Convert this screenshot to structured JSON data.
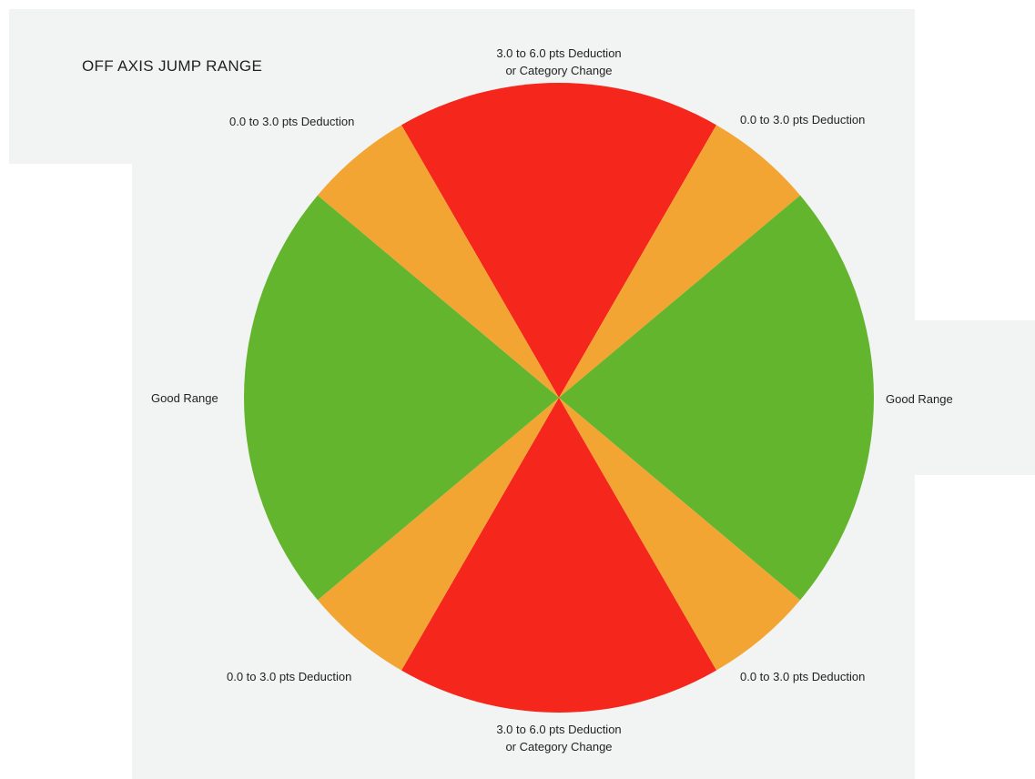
{
  "chart_data": {
    "type": "pie",
    "title": "OFF AXIS JUMP RANGE",
    "slices": [
      {
        "label": "3.0 to 6.0 pts Deduction\nor Category Change",
        "start_deg": -30,
        "end_deg": 30,
        "color": "#f5261b"
      },
      {
        "label": "0.0 to 3.0 pts Deduction",
        "start_deg": 30,
        "end_deg": 50,
        "color": "#f3a534"
      },
      {
        "label": "Good Range",
        "start_deg": 50,
        "end_deg": 130,
        "color": "#63b52e"
      },
      {
        "label": "0.0 to 3.0 pts Deduction",
        "start_deg": 130,
        "end_deg": 150,
        "color": "#f3a534"
      },
      {
        "label": "3.0 to 6.0 pts Deduction\nor Category Change",
        "start_deg": 150,
        "end_deg": 210,
        "color": "#f5261b"
      },
      {
        "label": "0.0 to 3.0 pts Deduction",
        "start_deg": 210,
        "end_deg": 230,
        "color": "#f3a534"
      },
      {
        "label": "Good Range",
        "start_deg": 230,
        "end_deg": 310,
        "color": "#63b52e"
      },
      {
        "label": "0.0 to 3.0 pts Deduction",
        "start_deg": 310,
        "end_deg": 330,
        "color": "#f3a534"
      }
    ],
    "labels": {
      "top": [
        "3.0 to 6.0 pts Deduction",
        "or Category Change"
      ],
      "top_left": "0.0 to 3.0 pts Deduction",
      "top_right": "0.0 to 3.0 pts Deduction",
      "left": "Good Range",
      "right": "Good Range",
      "bottom_left": "0.0 to 3.0 pts Deduction",
      "bottom_right": "0.0 to 3.0 pts Deduction",
      "bottom": [
        "3.0 to 6.0 pts Deduction",
        "or Category Change"
      ]
    }
  }
}
